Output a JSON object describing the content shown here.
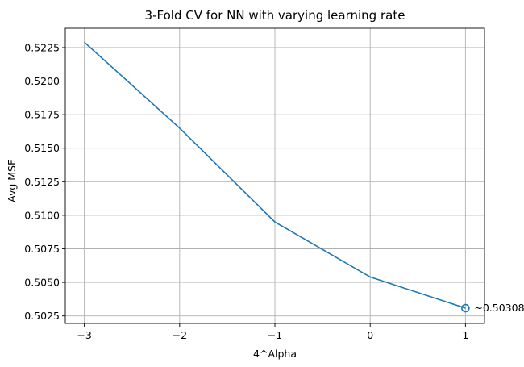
{
  "chart_data": {
    "type": "line",
    "title": "3-Fold CV for NN with varying learning rate",
    "xlabel": "4^Alpha",
    "ylabel": "Avg MSE",
    "x": [
      -3,
      -2,
      -1,
      0,
      1
    ],
    "series": [
      {
        "values": [
          0.5229,
          0.5165,
          0.5095,
          0.5054,
          0.50308
        ]
      }
    ],
    "xlim": [
      -3.2,
      1.2
    ],
    "ylim": [
      0.50194,
      0.52394
    ],
    "xticks": [
      -3,
      -2,
      -1,
      0,
      1
    ],
    "xtick_labels": [
      "−3",
      "−2",
      "−1",
      "0",
      "1"
    ],
    "yticks": [
      0.5025,
      0.505,
      0.5075,
      0.51,
      0.5125,
      0.515,
      0.5175,
      0.52,
      0.5225
    ],
    "ytick_labels": [
      "0.5025",
      "0.5050",
      "0.5075",
      "0.5100",
      "0.5125",
      "0.5150",
      "0.5175",
      "0.5200",
      "0.5225"
    ],
    "grid": true,
    "highlight": {
      "x": 1,
      "y": 0.50308,
      "label": "~0.50308"
    },
    "colors": {
      "line": "#1f77b4",
      "grid": "#b0b0b0",
      "axis": "#000000"
    }
  }
}
